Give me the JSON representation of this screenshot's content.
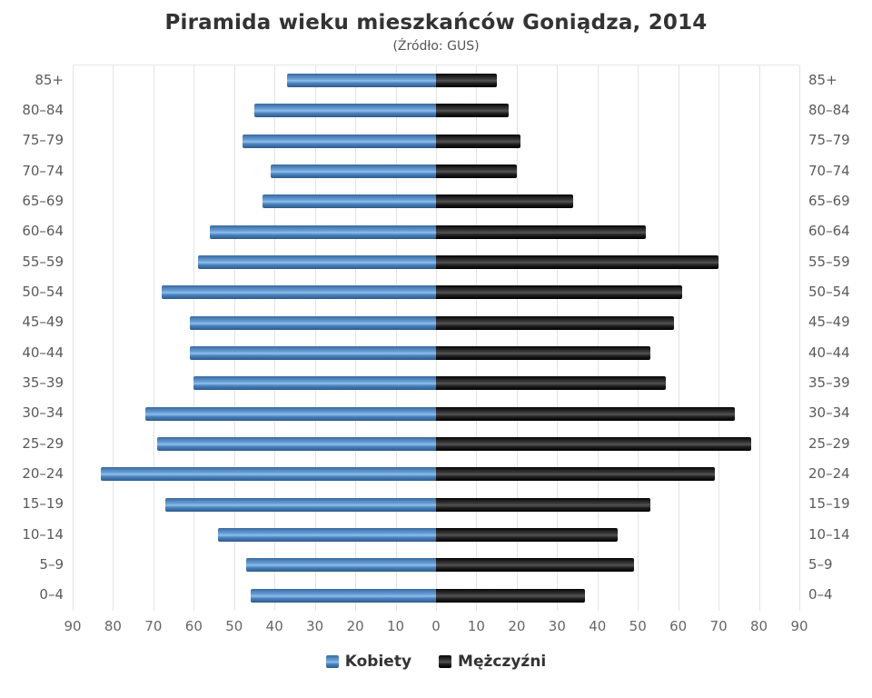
{
  "title": "Piramida wieku mieszkańców Goniądza, 2014",
  "subtitle": "(Źródło: GUS)",
  "legend": {
    "women": "Kobiety",
    "men": "Mężczyźni"
  },
  "colors": {
    "women_bar": "#4a80ba",
    "men_bar": "#1b1b1b",
    "gridline": "#e3e3e3",
    "title_text": "#333333",
    "axis_text": "#5a5a5a"
  },
  "chart_data": {
    "type": "bar",
    "orientation": "horizontal-population-pyramid",
    "title": "Piramida wieku mieszkańców Goniądza, 2014",
    "subtitle": "(Źródło: GUS)",
    "categories": [
      "85+",
      "80–84",
      "75–79",
      "70–74",
      "65–69",
      "60–64",
      "55–59",
      "50–54",
      "45–49",
      "40–44",
      "35–39",
      "30–34",
      "25–29",
      "20–24",
      "15–19",
      "10–14",
      "5–9",
      "0–4"
    ],
    "series": [
      {
        "name": "Kobiety",
        "side": "left",
        "color": "#4a80ba",
        "values": [
          37,
          45,
          48,
          41,
          43,
          56,
          59,
          68,
          61,
          61,
          60,
          72,
          69,
          83,
          67,
          54,
          47,
          46
        ]
      },
      {
        "name": "Mężczyźni",
        "side": "right",
        "color": "#1b1b1b",
        "values": [
          15,
          18,
          21,
          20,
          34,
          52,
          70,
          61,
          59,
          53,
          57,
          74,
          78,
          69,
          53,
          45,
          49,
          37
        ]
      }
    ],
    "xlim": [
      0,
      90
    ],
    "x_tick_labels": [
      "90",
      "80",
      "70",
      "60",
      "50",
      "40",
      "30",
      "20",
      "10",
      "0",
      "10",
      "20",
      "30",
      "40",
      "50",
      "60",
      "70",
      "80",
      "90"
    ],
    "grid": true,
    "legend_position": "bottom"
  }
}
